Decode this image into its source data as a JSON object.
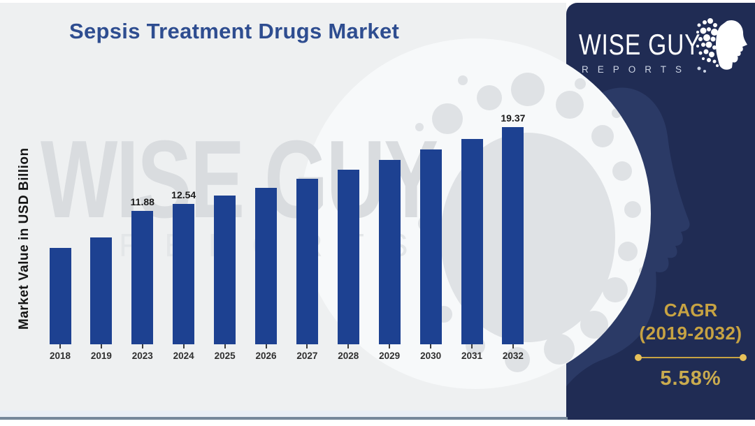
{
  "title": "Sepsis Treatment Drugs Market",
  "watermark": {
    "line1": "WISE GUY",
    "line2": "REPORTS"
  },
  "logo": {
    "line1": "WISE GUY",
    "line2": "REPORTS"
  },
  "cagr": {
    "label": "CAGR",
    "range": "(2019-2032)",
    "value": "5.58%"
  },
  "chart_data": {
    "type": "bar",
    "title": "Sepsis Treatment Drugs Market",
    "xlabel": "",
    "ylabel": "Market Value in USD Billion",
    "categories": [
      "2018",
      "2019",
      "2023",
      "2024",
      "2025",
      "2026",
      "2027",
      "2028",
      "2029",
      "2030",
      "2031",
      "2032"
    ],
    "values": [
      8.6,
      9.56,
      11.88,
      12.54,
      13.24,
      13.98,
      14.76,
      15.58,
      16.45,
      17.37,
      18.34,
      19.37
    ],
    "data_labels": [
      "",
      "",
      "11.88",
      "12.54",
      "",
      "",
      "",
      "",
      "",
      "",
      "",
      "19.37"
    ],
    "ylim": [
      0,
      20.5
    ],
    "grid": false,
    "legend": null,
    "bar_color": "#1d4191"
  },
  "colors": {
    "background_gray": "#eef0f1",
    "panel_navy": "#202c54",
    "panel_face_navy": "#2b3a66",
    "bar_blue": "#1d4191",
    "accent_gold": "#c7a343",
    "title_blue": "#2e4d90",
    "watermark_gray": "#d9dcdf",
    "bottom_rule": "#76879a"
  }
}
